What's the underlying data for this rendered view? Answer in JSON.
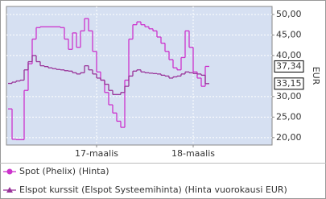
{
  "chart_data": {
    "type": "line",
    "step": true,
    "grid": true,
    "y_label": "EUR",
    "categories": [
      null,
      null,
      null,
      null,
      null,
      null,
      null,
      null,
      null,
      null,
      null,
      null,
      null,
      null,
      null,
      null,
      null,
      null,
      null,
      null,
      null,
      null,
      "17-maalis",
      null,
      null,
      null,
      null,
      null,
      null,
      null,
      null,
      null,
      null,
      null,
      null,
      null,
      null,
      null,
      null,
      null,
      null,
      null,
      null,
      null,
      null,
      null,
      "18-maalis",
      null,
      null,
      null
    ],
    "series": [
      {
        "name": "Spot (Phelix) (Hinta)",
        "color": "#cc33cc",
        "marker": "circle",
        "values": [
          27,
          19.6,
          19.5,
          19.5,
          31.5,
          38,
          44,
          46.8,
          47,
          47,
          47,
          47,
          47,
          46.8,
          44,
          41.5,
          45.5,
          42,
          46,
          49,
          46,
          41,
          36,
          34,
          31,
          28,
          26,
          24,
          22.5,
          34,
          44,
          47.5,
          48.2,
          47.5,
          47,
          46.5,
          46,
          44.5,
          43,
          41,
          39,
          37,
          36.5,
          39.5,
          46,
          42,
          36,
          34.5,
          32.5,
          37.34
        ],
        "value_labels": [
          null,
          null,
          null,
          null,
          null,
          null,
          null,
          null,
          null,
          null,
          null,
          null,
          null,
          null,
          null,
          null,
          null,
          null,
          null,
          null,
          null,
          null,
          null,
          null,
          null,
          null,
          null,
          null,
          null,
          null,
          null,
          null,
          null,
          null,
          null,
          null,
          null,
          null,
          null,
          null,
          null,
          null,
          null,
          null,
          null,
          null,
          null,
          null,
          null,
          "37,34"
        ]
      },
      {
        "name": "Elspot kurssit (Elspot Systeemihinta) (Hinta vuorokausi EUR)",
        "color": "#993399",
        "marker": "triangle",
        "values": [
          33.2,
          33.5,
          33.8,
          34,
          36.5,
          38.5,
          40,
          38.5,
          37.5,
          37.3,
          37,
          36.8,
          36.6,
          36.5,
          36.3,
          36.2,
          35.8,
          35.5,
          35.8,
          37.5,
          36.5,
          35.5,
          34.5,
          34,
          33,
          31.5,
          30.5,
          30.5,
          31,
          32.5,
          35,
          36.2,
          36.5,
          36,
          35.8,
          35.7,
          35.6,
          35.5,
          35.2,
          35,
          34.5,
          34.8,
          35,
          35.5,
          36,
          35.8,
          35.6,
          35.5,
          35.2,
          33.15
        ],
        "value_labels": [
          null,
          null,
          null,
          null,
          null,
          null,
          null,
          null,
          null,
          null,
          null,
          null,
          null,
          null,
          null,
          null,
          null,
          null,
          null,
          null,
          null,
          null,
          null,
          null,
          null,
          null,
          null,
          null,
          null,
          null,
          null,
          null,
          null,
          null,
          null,
          null,
          null,
          null,
          null,
          null,
          null,
          null,
          null,
          null,
          null,
          null,
          null,
          null,
          null,
          "33,15"
        ]
      }
    ],
    "ylim": [
      18.2,
      51.95
    ],
    "yticks": [
      {
        "value": 20,
        "label": "20,00"
      },
      {
        "value": 25,
        "label": "25,00"
      },
      {
        "value": 30,
        "label": "30,00"
      },
      {
        "value": 40,
        "label": "40,00"
      },
      {
        "value": 45,
        "label": "45,00"
      },
      {
        "value": 50,
        "label": "50,00"
      }
    ]
  }
}
